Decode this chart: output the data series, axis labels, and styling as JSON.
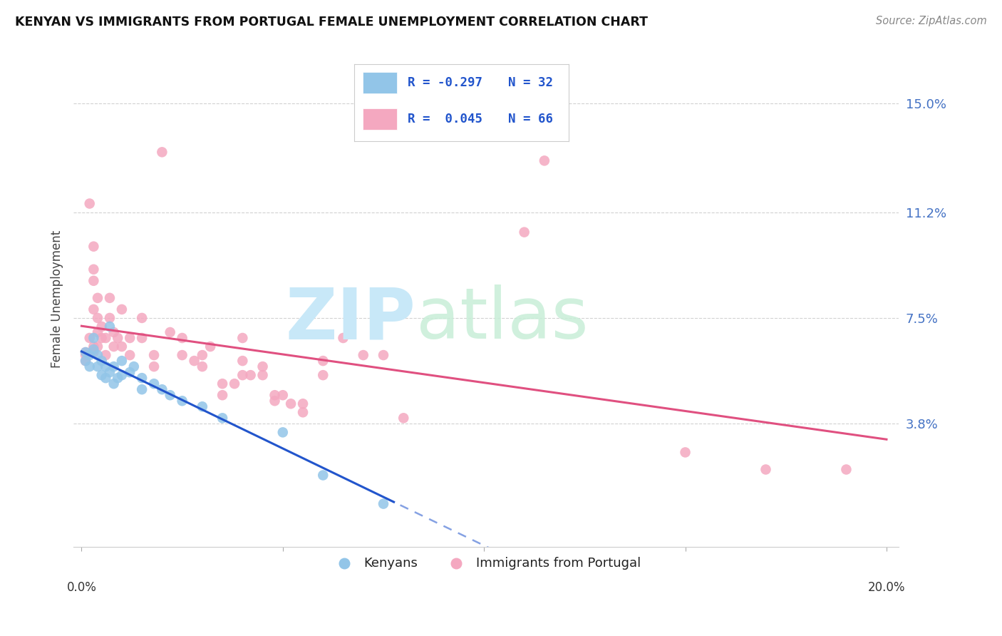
{
  "title": "KENYAN VS IMMIGRANTS FROM PORTUGAL FEMALE UNEMPLOYMENT CORRELATION CHART",
  "source": "Source: ZipAtlas.com",
  "ylabel": "Female Unemployment",
  "y_ticks": [
    0.038,
    0.075,
    0.112,
    0.15
  ],
  "y_tick_labels": [
    "3.8%",
    "7.5%",
    "11.2%",
    "15.0%"
  ],
  "x_range": [
    0.0,
    0.2
  ],
  "y_range": [
    -0.005,
    0.168
  ],
  "legend_blue_R": "R = -0.297",
  "legend_blue_N": "N = 32",
  "legend_pink_R": "R =  0.045",
  "legend_pink_N": "N = 66",
  "label_kenyans": "Kenyans",
  "label_portugal": "Immigrants from Portugal",
  "blue_color": "#92C5E8",
  "pink_color": "#F4A8C0",
  "blue_line_color": "#2255CC",
  "pink_line_color": "#E05080",
  "blue_scatter": [
    [
      0.001,
      0.063
    ],
    [
      0.001,
      0.06
    ],
    [
      0.002,
      0.062
    ],
    [
      0.002,
      0.058
    ],
    [
      0.003,
      0.068
    ],
    [
      0.003,
      0.064
    ],
    [
      0.004,
      0.062
    ],
    [
      0.004,
      0.058
    ],
    [
      0.005,
      0.06
    ],
    [
      0.005,
      0.055
    ],
    [
      0.006,
      0.058
    ],
    [
      0.006,
      0.054
    ],
    [
      0.007,
      0.072
    ],
    [
      0.007,
      0.056
    ],
    [
      0.008,
      0.058
    ],
    [
      0.008,
      0.052
    ],
    [
      0.009,
      0.054
    ],
    [
      0.01,
      0.06
    ],
    [
      0.01,
      0.055
    ],
    [
      0.012,
      0.056
    ],
    [
      0.013,
      0.058
    ],
    [
      0.015,
      0.054
    ],
    [
      0.015,
      0.05
    ],
    [
      0.018,
      0.052
    ],
    [
      0.02,
      0.05
    ],
    [
      0.022,
      0.048
    ],
    [
      0.025,
      0.046
    ],
    [
      0.03,
      0.044
    ],
    [
      0.035,
      0.04
    ],
    [
      0.05,
      0.035
    ],
    [
      0.06,
      0.02
    ],
    [
      0.075,
      0.01
    ]
  ],
  "pink_scatter": [
    [
      0.001,
      0.063
    ],
    [
      0.001,
      0.062
    ],
    [
      0.001,
      0.06
    ],
    [
      0.002,
      0.115
    ],
    [
      0.002,
      0.068
    ],
    [
      0.003,
      0.1
    ],
    [
      0.003,
      0.092
    ],
    [
      0.003,
      0.088
    ],
    [
      0.003,
      0.078
    ],
    [
      0.003,
      0.065
    ],
    [
      0.003,
      0.063
    ],
    [
      0.004,
      0.082
    ],
    [
      0.004,
      0.075
    ],
    [
      0.004,
      0.07
    ],
    [
      0.004,
      0.065
    ],
    [
      0.005,
      0.072
    ],
    [
      0.005,
      0.068
    ],
    [
      0.006,
      0.068
    ],
    [
      0.006,
      0.062
    ],
    [
      0.007,
      0.082
    ],
    [
      0.007,
      0.075
    ],
    [
      0.008,
      0.07
    ],
    [
      0.008,
      0.065
    ],
    [
      0.009,
      0.068
    ],
    [
      0.01,
      0.078
    ],
    [
      0.01,
      0.065
    ],
    [
      0.012,
      0.068
    ],
    [
      0.012,
      0.062
    ],
    [
      0.015,
      0.075
    ],
    [
      0.015,
      0.068
    ],
    [
      0.018,
      0.062
    ],
    [
      0.018,
      0.058
    ],
    [
      0.02,
      0.133
    ],
    [
      0.022,
      0.07
    ],
    [
      0.025,
      0.068
    ],
    [
      0.025,
      0.062
    ],
    [
      0.028,
      0.06
    ],
    [
      0.03,
      0.062
    ],
    [
      0.03,
      0.058
    ],
    [
      0.032,
      0.065
    ],
    [
      0.035,
      0.052
    ],
    [
      0.035,
      0.048
    ],
    [
      0.038,
      0.052
    ],
    [
      0.04,
      0.068
    ],
    [
      0.04,
      0.06
    ],
    [
      0.04,
      0.055
    ],
    [
      0.042,
      0.055
    ],
    [
      0.045,
      0.058
    ],
    [
      0.045,
      0.055
    ],
    [
      0.048,
      0.048
    ],
    [
      0.048,
      0.046
    ],
    [
      0.05,
      0.048
    ],
    [
      0.052,
      0.045
    ],
    [
      0.055,
      0.045
    ],
    [
      0.055,
      0.042
    ],
    [
      0.06,
      0.06
    ],
    [
      0.06,
      0.055
    ],
    [
      0.065,
      0.068
    ],
    [
      0.07,
      0.062
    ],
    [
      0.075,
      0.062
    ],
    [
      0.08,
      0.04
    ],
    [
      0.11,
      0.105
    ],
    [
      0.115,
      0.13
    ],
    [
      0.15,
      0.028
    ],
    [
      0.17,
      0.022
    ],
    [
      0.19,
      0.022
    ]
  ],
  "background_color": "#FFFFFF",
  "grid_color": "#CCCCCC"
}
